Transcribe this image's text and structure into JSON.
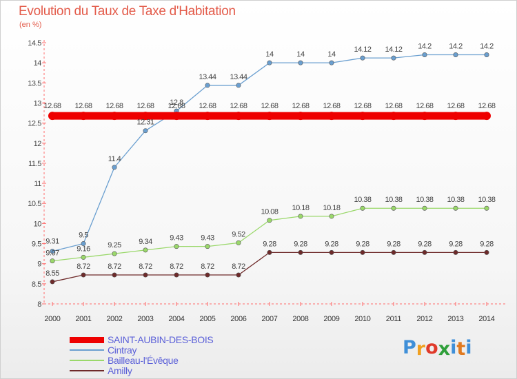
{
  "title": "Evolution du Taux de Taxe d'Habitation",
  "unit": "(en %)",
  "chart_data": {
    "type": "line",
    "x": [
      "2000",
      "2001",
      "2002",
      "2003",
      "2004",
      "2005",
      "2006",
      "2007",
      "2008",
      "2009",
      "2010",
      "2011",
      "2012",
      "2013",
      "2014"
    ],
    "ylim": [
      8,
      14.5
    ],
    "yticks": [
      8,
      8.5,
      9,
      9.5,
      10,
      10.5,
      11,
      11.5,
      12,
      12.5,
      13,
      13.5,
      14,
      14.5
    ],
    "grid": false,
    "legend_position": "bottom-left",
    "series": [
      {
        "name": "SAINT-AUBIN-DES-BOIS",
        "color": "#ee0000",
        "values": [
          12.68,
          12.68,
          12.68,
          12.68,
          12.68,
          12.68,
          12.68,
          12.68,
          12.68,
          12.68,
          12.68,
          12.68,
          12.68,
          12.68,
          12.68
        ],
        "labels": [
          "12.68",
          "12.68",
          "12.68",
          "12.68",
          "12.68",
          "12.68",
          "12.68",
          "12.68",
          "12.68",
          "12.68",
          "12.68",
          "12.68",
          "12.68",
          "12.68",
          "12.68"
        ]
      },
      {
        "name": "Cintray",
        "color": "#6a9fd0",
        "values": [
          9.31,
          9.5,
          11.4,
          12.31,
          12.8,
          13.44,
          13.44,
          14,
          14,
          14,
          14.12,
          14.12,
          14.2,
          14.2,
          14.2
        ],
        "labels": [
          "9.31",
          "9.5",
          "11.4",
          "12.31",
          "12.8",
          "13.44",
          "13.44",
          "14",
          "14",
          "14",
          "14.12",
          "14.12",
          "14.2",
          "14.2",
          "14.2"
        ]
      },
      {
        "name": "Bailleau-l'Évêque",
        "color": "#9ad86a",
        "values": [
          9.07,
          9.16,
          9.25,
          9.34,
          9.43,
          9.43,
          9.52,
          10.08,
          10.18,
          10.18,
          10.38,
          10.38,
          10.38,
          10.38,
          10.38
        ],
        "labels": [
          "9.07",
          "9.16",
          "9.25",
          "9.34",
          "9.43",
          "9.43",
          "9.52",
          "10.08",
          "10.18",
          "10.18",
          "10.38",
          "10.38",
          "10.38",
          "10.38",
          "10.38"
        ]
      },
      {
        "name": "Amilly",
        "color": "#6e2a2a",
        "values": [
          8.55,
          8.72,
          8.72,
          8.72,
          8.72,
          8.72,
          8.72,
          9.28,
          9.28,
          9.28,
          9.28,
          9.28,
          9.28,
          9.28,
          9.28
        ],
        "labels": [
          "8.55",
          "8.72",
          "8.72",
          "8.72",
          "8.72",
          "8.72",
          "8.72",
          "9.28",
          "9.28",
          "9.28",
          "9.28",
          "9.28",
          "9.28",
          "9.28",
          "9.28"
        ]
      }
    ]
  },
  "logo": {
    "letters": [
      "P",
      "r",
      "o",
      "x",
      "i",
      "t",
      "i"
    ],
    "colors": [
      "#3f8fd8",
      "#f0a020",
      "#e03a2a",
      "#2f9f3a",
      "#3f8fd8",
      "#e07a20",
      "#3f8fd8"
    ]
  }
}
